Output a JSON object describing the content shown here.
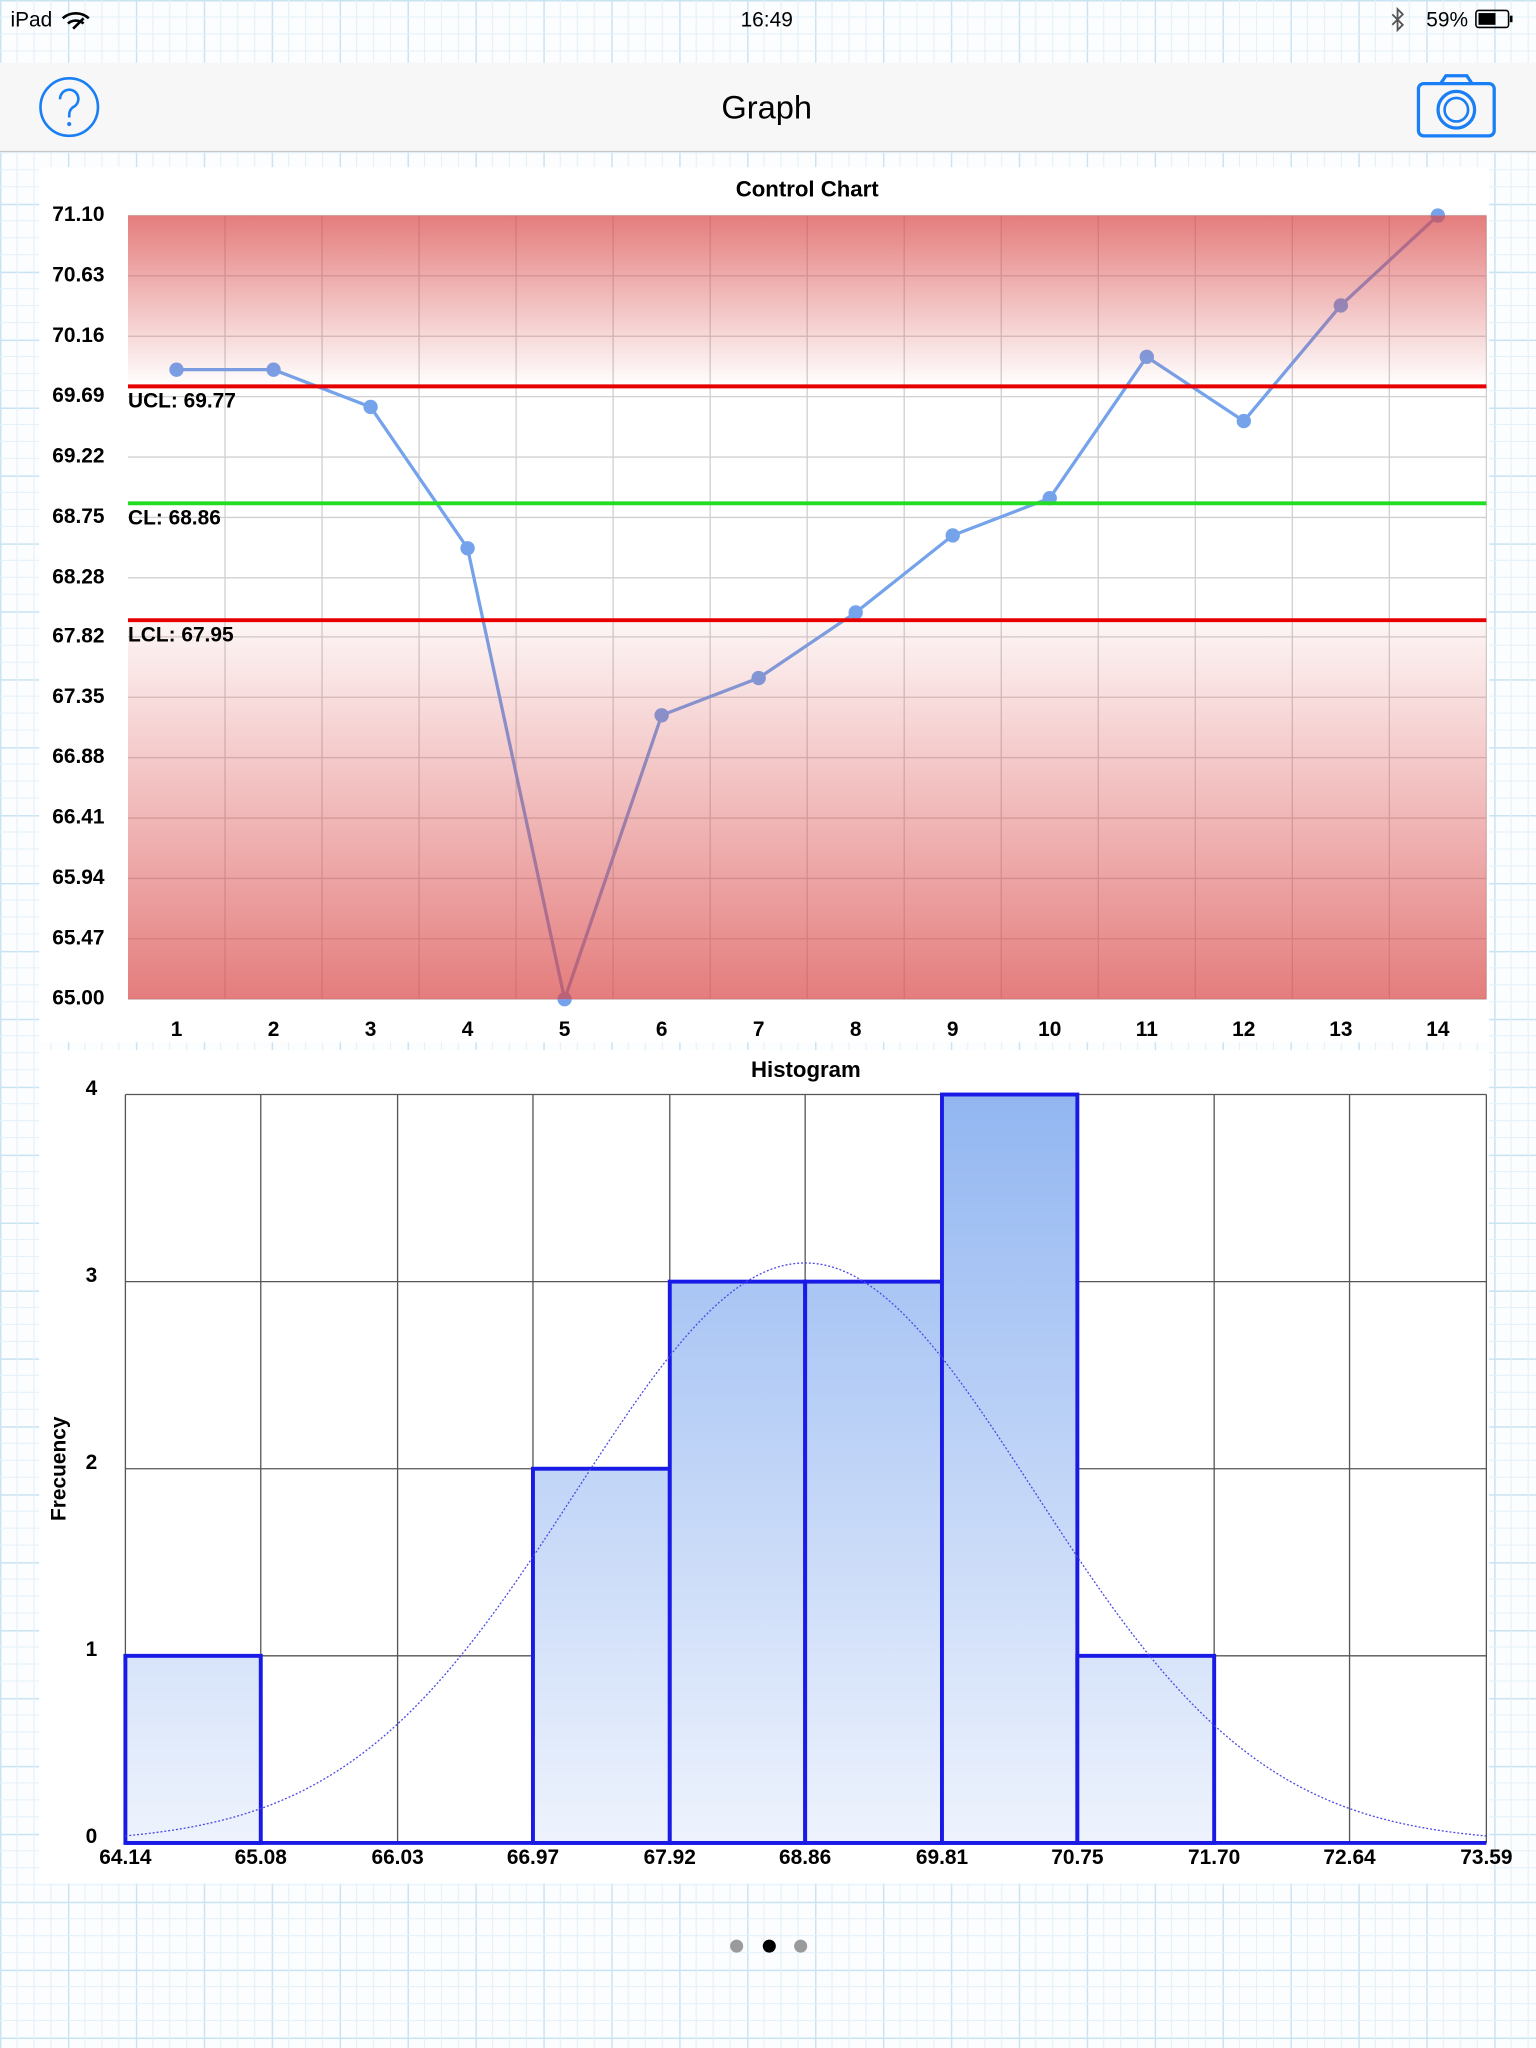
{
  "status": {
    "carrier": "iPad",
    "time": "16:49",
    "battery": "59%"
  },
  "nav": {
    "title": "Graph"
  },
  "chart_data": [
    {
      "type": "line",
      "title": "Control Chart",
      "x": [
        1,
        2,
        3,
        4,
        5,
        6,
        7,
        8,
        9,
        10,
        11,
        12,
        13,
        14
      ],
      "series": [
        {
          "color": "#74a3ec",
          "values": [
            69.9,
            69.9,
            69.61,
            68.51,
            65.0,
            67.21,
            67.5,
            68.01,
            68.61,
            68.9,
            70.0,
            69.5,
            70.4,
            71.1
          ]
        }
      ],
      "xlim": [
        0.5,
        14.5
      ],
      "xticks": [
        1,
        2,
        3,
        4,
        5,
        6,
        7,
        8,
        9,
        10,
        11,
        12,
        13,
        14
      ],
      "ylim": [
        65,
        71.1
      ],
      "yticks": [
        {
          "value": 65,
          "label": "65.00"
        },
        65.47,
        65.94,
        66.41,
        66.88,
        67.35,
        67.82,
        68.28,
        68.75,
        69.22,
        69.69,
        70.16,
        70.63,
        {
          "value": 71.1,
          "label": "71.10"
        }
      ],
      "grid": true,
      "control_lines": [
        {
          "label": "UCL: 69.77",
          "value": 69.77,
          "color": "#e60000"
        },
        {
          "label": "CL: 68.86",
          "value": 68.86,
          "color": "#22dd22"
        },
        {
          "label": "LCL: 67.95",
          "value": 67.95,
          "color": "#e60000"
        }
      ]
    },
    {
      "type": "histogram",
      "title": "Histogram",
      "ylabel": "Frecuency",
      "bins": [
        64.14,
        65.08,
        66.03,
        66.97,
        67.92,
        68.86,
        69.81,
        70.75,
        71.7,
        72.64,
        73.59
      ],
      "values": [
        1,
        0,
        0,
        2,
        3,
        3,
        4,
        1,
        0,
        0
      ],
      "color": "#1a1ae6",
      "xlim": [
        64.14,
        73.59
      ],
      "xticks": [
        64.14,
        65.08,
        66.03,
        66.97,
        67.92,
        68.86,
        69.81,
        70.75,
        {
          "value": 71.7,
          "label": "71.70"
        },
        72.64,
        73.59
      ],
      "ylim": [
        0,
        4
      ],
      "yticks": [
        0,
        1,
        2,
        3,
        4
      ],
      "grid": true,
      "fit": {
        "mean": 68.86,
        "sd": 1.59,
        "peak": 3.1
      }
    }
  ]
}
